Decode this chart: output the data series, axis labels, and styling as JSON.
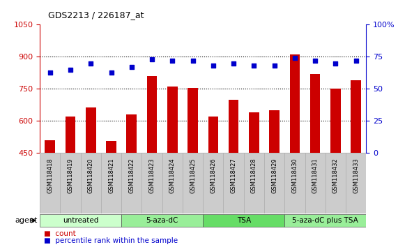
{
  "title": "GDS2213 / 226187_at",
  "categories": [
    "GSM118418",
    "GSM118419",
    "GSM118420",
    "GSM118421",
    "GSM118422",
    "GSM118423",
    "GSM118424",
    "GSM118425",
    "GSM118426",
    "GSM118427",
    "GSM118428",
    "GSM118429",
    "GSM118430",
    "GSM118431",
    "GSM118432",
    "GSM118433"
  ],
  "counts": [
    510,
    620,
    665,
    508,
    630,
    810,
    760,
    755,
    620,
    698,
    640,
    650,
    910,
    820,
    750,
    790
  ],
  "percentiles": [
    63,
    65,
    70,
    63,
    67,
    73,
    72,
    72,
    68,
    70,
    68,
    68,
    74,
    72,
    70,
    72
  ],
  "bar_color": "#cc0000",
  "dot_color": "#0000cc",
  "ylim_left": [
    450,
    1050
  ],
  "ylim_right": [
    0,
    100
  ],
  "yticks_left": [
    450,
    600,
    750,
    900,
    1050
  ],
  "yticks_right": [
    0,
    25,
    50,
    75,
    100
  ],
  "groups": [
    {
      "label": "untreated",
      "start": 0,
      "end": 4,
      "color": "#ccffcc"
    },
    {
      "label": "5-aza-dC",
      "start": 4,
      "end": 8,
      "color": "#99ee99"
    },
    {
      "label": "TSA",
      "start": 8,
      "end": 12,
      "color": "#66dd66"
    },
    {
      "label": "5-aza-dC plus TSA",
      "start": 12,
      "end": 16,
      "color": "#99ee99"
    }
  ],
  "agent_label": "agent",
  "legend_count_label": "count",
  "legend_pct_label": "percentile rank within the sample",
  "tick_area_color": "#cccccc",
  "dotted_grid_yticks": [
    600,
    750,
    900
  ]
}
